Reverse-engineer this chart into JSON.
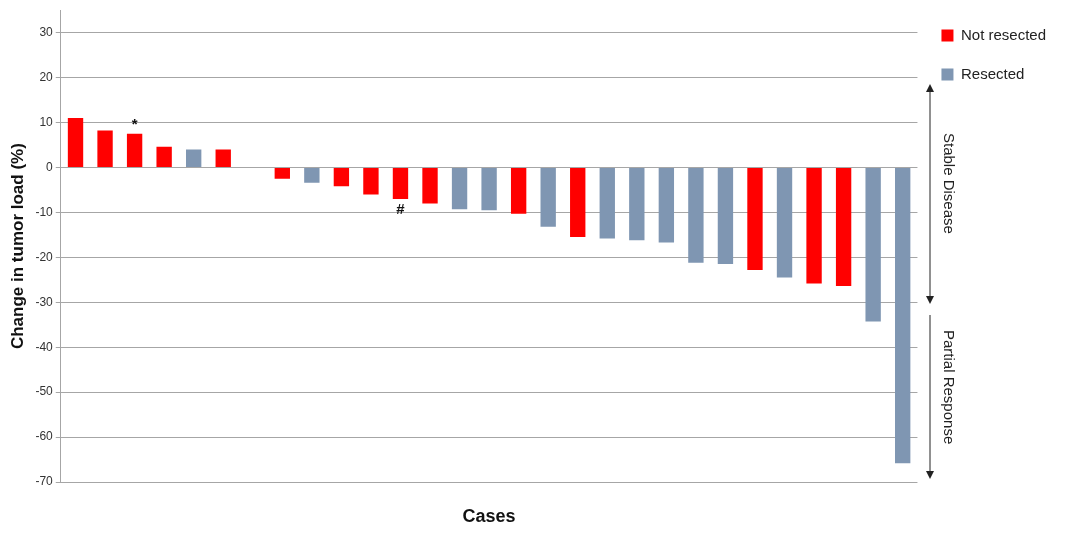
{
  "chart_data": {
    "type": "bar",
    "xlabel": "Cases",
    "ylabel": "Change in tumor load (%)",
    "categories": [
      null,
      null,
      null,
      null,
      null,
      null,
      null,
      null,
      null,
      null,
      null,
      null,
      null,
      null,
      null,
      null,
      null,
      null,
      null,
      null,
      null,
      null,
      null,
      null,
      null,
      null,
      null,
      null,
      null
    ],
    "series": [
      {
        "name": "Not resected",
        "color": "#ff0000",
        "values": [
          11,
          8.2,
          7.5,
          4.6,
          null,
          4.0,
          null,
          -2.5,
          null,
          -4.2,
          -6,
          -7,
          -8,
          null,
          null,
          -10.3,
          null,
          -15.5,
          null,
          null,
          null,
          null,
          null,
          -22.8,
          null,
          -25.8,
          -26.4,
          null,
          null
        ],
        "value_labels": [
          null,
          null,
          "*",
          null,
          null,
          null,
          null,
          null,
          null,
          null,
          null,
          "#",
          null,
          null,
          null,
          null,
          null,
          null,
          null,
          null,
          null,
          null,
          null,
          null,
          null,
          null,
          null,
          null,
          null
        ]
      },
      {
        "name": "Resected",
        "color": "#7f96b2",
        "values": [
          null,
          null,
          null,
          null,
          4.0,
          null,
          null,
          null,
          -3.4,
          null,
          null,
          null,
          null,
          -9.3,
          -9.5,
          null,
          -13.2,
          null,
          -15.8,
          -16.2,
          -16.7,
          -21.2,
          -21.5,
          null,
          -24.5,
          null,
          null,
          -34.3,
          -65.8
        ]
      }
    ],
    "ylim": [
      -70,
      35
    ],
    "yticks": [
      -70,
      -60,
      -50,
      -40,
      -30,
      -20,
      -10,
      0,
      10,
      20,
      30
    ],
    "grid": "y",
    "legend": "top right",
    "annotations": [
      "Stable Disease",
      "Partial Response"
    ]
  }
}
